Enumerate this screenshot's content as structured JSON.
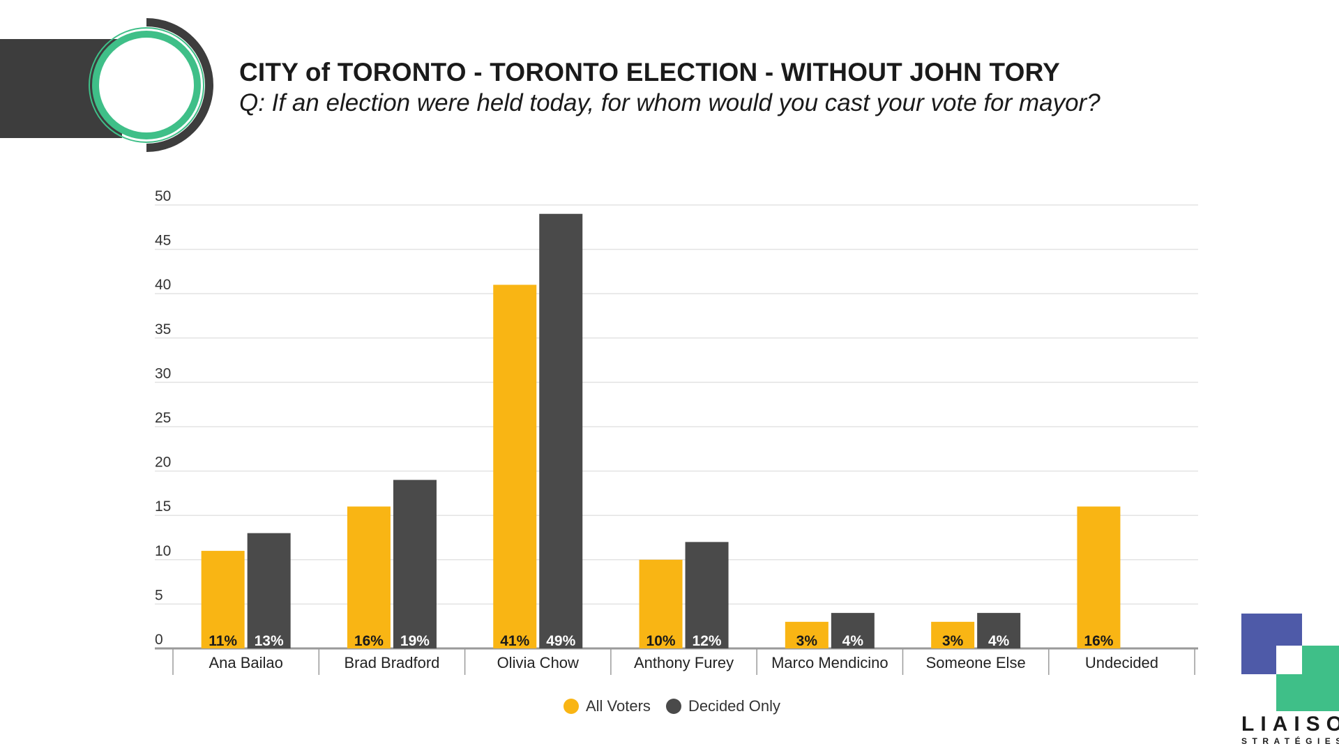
{
  "header": {
    "title": "CITY of TORONTO - TORONTO ELECTION - WITHOUT JOHN TORY",
    "subtitle": "Q: If an election were held today, for whom would you cast your vote for mayor?"
  },
  "chart_data": {
    "type": "bar",
    "title": "CITY of TORONTO - TORONTO ELECTION - WITHOUT JOHN TORY",
    "xlabel": "",
    "ylabel": "",
    "ylim": [
      0,
      50
    ],
    "yticks": [
      0,
      5,
      10,
      15,
      20,
      25,
      30,
      35,
      40,
      45,
      50
    ],
    "grid": true,
    "legend_position": "bottom",
    "categories": [
      "Ana Bailao",
      "Brad Bradford",
      "Olivia Chow",
      "Anthony Furey",
      "Marco Mendicino",
      "Someone Else",
      "Undecided"
    ],
    "series": [
      {
        "name": "All Voters",
        "color": "#f9b514",
        "label_color": "#1a1a1a",
        "values": [
          11,
          16,
          41,
          10,
          3,
          3,
          16
        ],
        "labels": [
          "11%",
          "16%",
          "41%",
          "10%",
          "3%",
          "3%",
          "16%"
        ]
      },
      {
        "name": "Decided Only",
        "color": "#4a4a4a",
        "label_color": "#ffffff",
        "values": [
          13,
          19,
          49,
          12,
          4,
          4,
          null
        ],
        "labels": [
          "13%",
          "19%",
          "49%",
          "12%",
          "4%",
          "4%",
          ""
        ]
      }
    ]
  },
  "brand": {
    "name": "LIAISON",
    "sub": "STRATÉGIES",
    "colors": {
      "blue": "#4e5aa8",
      "green": "#3fbf88",
      "dark": "#3d3d3d"
    }
  }
}
